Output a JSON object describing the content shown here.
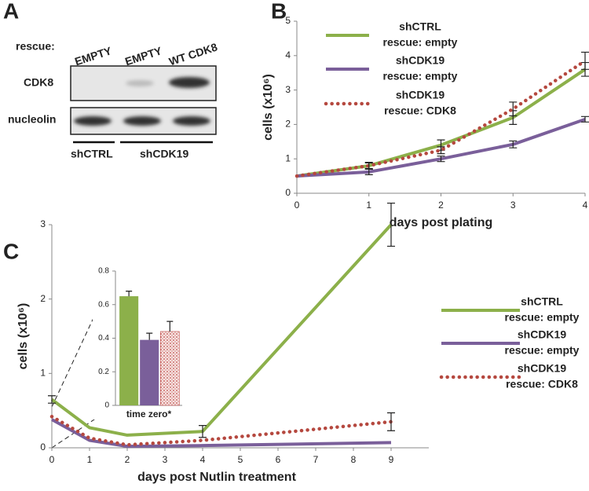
{
  "panel_labels": [
    "A",
    "B",
    "C"
  ],
  "blot": {
    "row_header": "rescue:",
    "lanes": [
      "EMPTY",
      "EMPTY",
      "WT CDK8"
    ],
    "rows": [
      "CDK8",
      "nucleolin"
    ],
    "groups": [
      "shCTRL",
      "shCDK19"
    ]
  },
  "chart_data": [
    {
      "type": "line",
      "xlabel": "days post plating",
      "ylabel": "cells (x10⁶)",
      "x": [
        0,
        1,
        2,
        3,
        4
      ],
      "xlim": [
        0,
        4
      ],
      "xticks": [
        0,
        1,
        2,
        3,
        4
      ],
      "ylim": [
        0,
        5
      ],
      "yticks": [
        0,
        1,
        2,
        3,
        4,
        5
      ],
      "legend": "upper left",
      "series": [
        {
          "name": [
            "shCTRL",
            "rescue: empty"
          ],
          "color": "#8cb04a",
          "style": "solid",
          "values": [
            0.5,
            0.8,
            1.4,
            2.2,
            3.6
          ],
          "errors": [
            null,
            0.1,
            0.15,
            0.2,
            0.2
          ]
        },
        {
          "name": [
            "shCDK19",
            "rescue: empty"
          ],
          "color": "#7a5f9a",
          "style": "solid",
          "values": [
            0.5,
            0.62,
            1.0,
            1.42,
            2.15
          ],
          "errors": [
            null,
            0.08,
            0.08,
            0.1,
            0.08
          ]
        },
        {
          "name": [
            "shCDK19",
            "rescue: CDK8"
          ],
          "color": "#b5483f",
          "style": "dotted",
          "values": [
            0.5,
            0.8,
            1.25,
            2.45,
            3.85
          ],
          "errors": [
            null,
            0.08,
            0.1,
            0.2,
            0.25
          ]
        }
      ]
    },
    {
      "type": "line",
      "xlabel": "days post Nutlin treatment",
      "ylabel": "cells (x10⁶)",
      "x": [
        0,
        1,
        2,
        4,
        9
      ],
      "xlim": [
        0,
        10
      ],
      "xticks": [
        0,
        1,
        2,
        3,
        4,
        5,
        6,
        7,
        8,
        9
      ],
      "ylim": [
        0,
        3
      ],
      "yticks": [
        0,
        1,
        2,
        3
      ],
      "legend": "right",
      "series": [
        {
          "name": [
            "shCTRL",
            "rescue: empty"
          ],
          "color": "#8cb04a",
          "style": "solid",
          "values": [
            0.65,
            0.27,
            0.17,
            0.22,
            3.0
          ],
          "errors": [
            0.05,
            null,
            null,
            0.08,
            0.29
          ]
        },
        {
          "name": [
            "shCDK19",
            "rescue: empty"
          ],
          "color": "#7a5f9a",
          "style": "solid",
          "values": [
            0.38,
            0.1,
            0.02,
            0.03,
            0.07
          ]
        },
        {
          "name": [
            "shCDK19",
            "rescue: CDK8"
          ],
          "color": "#b5483f",
          "style": "dotted",
          "values": [
            0.42,
            0.13,
            0.04,
            0.1,
            0.35
          ],
          "errors": [
            null,
            null,
            null,
            null,
            0.12
          ]
        }
      ]
    },
    {
      "type": "bar",
      "categories": [
        "time zero*"
      ],
      "ylim": [
        0,
        0.8
      ],
      "yticks": [
        0,
        0.2,
        0.4,
        0.6,
        0.8
      ],
      "series": [
        {
          "color": "#8cb04a",
          "values": [
            0.65
          ],
          "errors": [
            0.03
          ]
        },
        {
          "color": "#7a5f9a",
          "values": [
            0.39
          ],
          "errors": [
            0.04
          ]
        },
        {
          "color": "#c0504d",
          "pattern": "dots",
          "values": [
            0.44
          ],
          "errors": [
            0.06
          ]
        }
      ]
    }
  ]
}
